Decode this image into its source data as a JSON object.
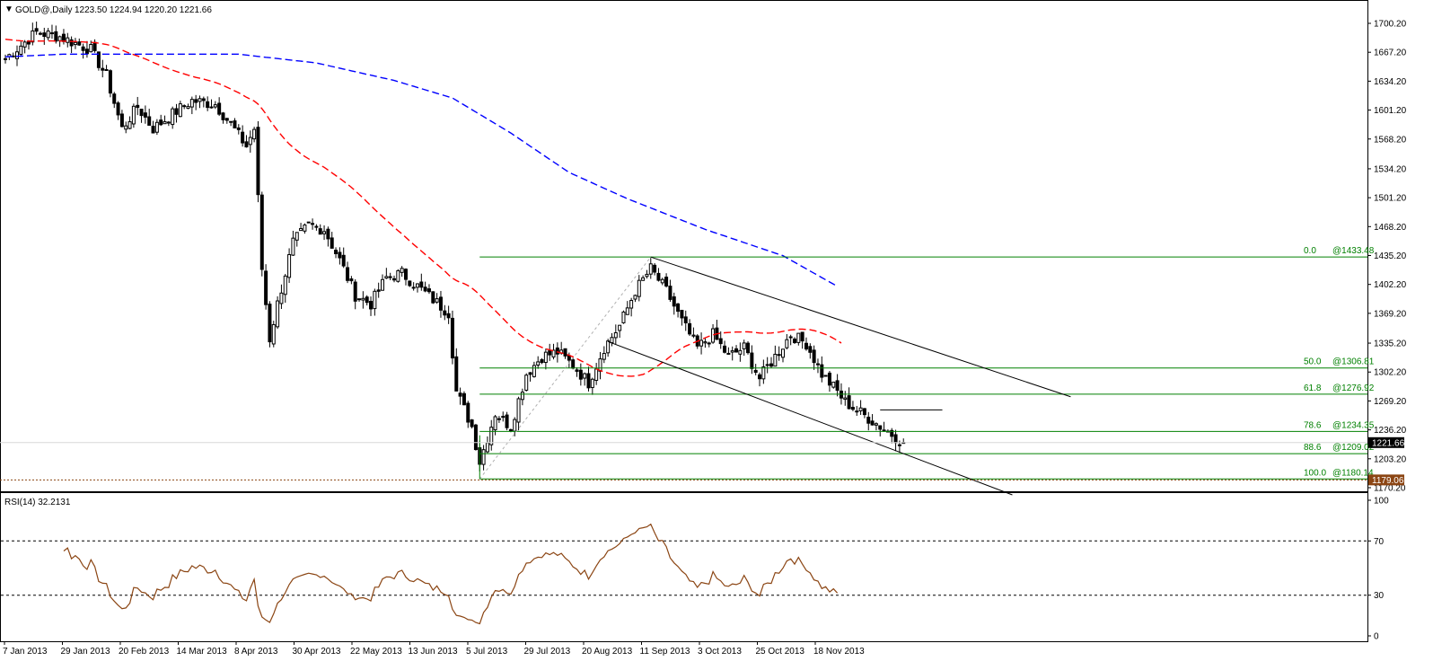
{
  "chart_data": {
    "type": "candlestick",
    "title": "GOLD@,Daily",
    "ohlc_text": "1223.50 1224.94 1220.20 1221.66",
    "symbol_icon": "dropdown-triangle-icon",
    "current_price": 1221.66,
    "current_price_label": "1221.66",
    "low_price_label": "1179.06",
    "low_price": 1179.06,
    "y_ticks": [
      "1700.20",
      "1667.20",
      "1634.20",
      "1601.20",
      "1568.20",
      "1534.20",
      "1501.20",
      "1468.20",
      "1435.20",
      "1402.20",
      "1369.20",
      "1335.20",
      "1302.20",
      "1269.20",
      "1236.20",
      "1203.20",
      "1170.20"
    ],
    "x_ticks": [
      "7 Jan 2013",
      "29 Jan 2013",
      "20 Feb 2013",
      "14 Mar 2013",
      "8 Apr 2013",
      "30 Apr 2013",
      "22 May 2013",
      "13 Jun 2013",
      "5 Jul 2013",
      "29 Jul 2013",
      "20 Aug 2013",
      "11 Sep 2013",
      "3 Oct 2013",
      "25 Oct 2013",
      "18 Nov 2013"
    ],
    "ylim": [
      1170.2,
      1710
    ],
    "fibonacci": [
      {
        "level": "0.0",
        "price_label": "@1433.48",
        "price": 1433.48
      },
      {
        "level": "50.0",
        "price_label": "@1306.81",
        "price": 1306.81
      },
      {
        "level": "61.8",
        "price_label": "@1276.92",
        "price": 1276.92
      },
      {
        "level": "78.6",
        "price_label": "@1234.35",
        "price": 1234.35
      },
      {
        "level": "88.6",
        "price_label": "@1209.02",
        "price": 1209.02
      },
      {
        "level": "100.0",
        "price_label": "@1180.14",
        "price": 1180.14
      }
    ],
    "anchor_points": {
      "low_date_index": 122,
      "low_price": 1180.14,
      "high_date_index": 166,
      "high_price": 1433.48
    },
    "channel": {
      "upper": [
        [
          166,
          1433.48
        ],
        [
          274,
          1274
        ]
      ],
      "lower": [
        [
          155,
          1337
        ],
        [
          259,
          1162
        ]
      ]
    },
    "resistance_segment": {
      "from": 225,
      "to": 241,
      "price": 1259
    },
    "ma_colors": {
      "ma_fast": "#ff0000",
      "ma_slow": "#0000ff"
    },
    "rsi": {
      "label": "RSI(14) 32.2131",
      "value": 32.2131,
      "levels": [
        70,
        30
      ],
      "ticks": [
        "100",
        "70",
        "30",
        "0"
      ],
      "color": "#8b4513"
    },
    "colors": {
      "bull": "#000000",
      "bear": "#000000",
      "fib": "#008000",
      "channel": "#000000"
    }
  }
}
